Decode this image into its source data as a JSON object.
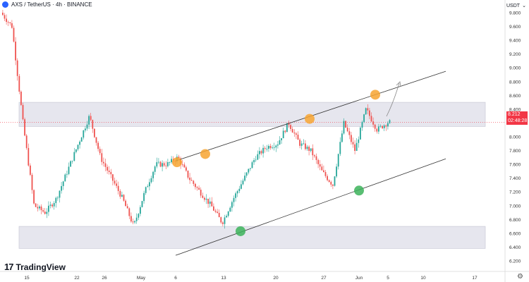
{
  "header": {
    "symbol": "AXS / TetherUS · 4h · BINANCE"
  },
  "brand": {
    "name": "TradingView",
    "mark": "17"
  },
  "price_axis": {
    "currency": "USDT",
    "current_price": "8.212",
    "countdown": "02:48:28",
    "ticks": [
      "9.800",
      "9.600",
      "9.400",
      "9.200",
      "9.000",
      "8.800",
      "8.600",
      "8.400",
      "8.200",
      "8.000",
      "7.800",
      "7.600",
      "7.400",
      "7.200",
      "7.000",
      "6.800",
      "6.600",
      "6.400",
      "6.200"
    ]
  },
  "colors": {
    "up": "#26a69a",
    "down": "#ef5350",
    "zone": "#e6e6ee",
    "orange_marker": "#f7a531",
    "green_marker": "#3cb35a",
    "price_tag": "#f23645"
  },
  "chart_data": {
    "type": "candlestick",
    "x_ticks": [
      "15",
      "22",
      "26",
      "May",
      "6",
      "13",
      "20",
      "27",
      "Jun",
      "5",
      "10",
      "17"
    ],
    "ylim": [
      6.2,
      9.9
    ],
    "last_price": 8.212,
    "price_path": [
      [
        "15",
        9.8
      ],
      [
        "15",
        9.6
      ],
      [
        "15",
        8.2
      ],
      [
        "15",
        7.0
      ],
      [
        "15",
        6.9
      ],
      [
        "15",
        7.1
      ],
      [
        "22",
        7.5
      ],
      [
        "22",
        7.9
      ],
      [
        "26",
        8.3
      ],
      [
        "26",
        7.7
      ],
      [
        "26",
        7.4
      ],
      [
        "May",
        7.1
      ],
      [
        "May",
        6.7
      ],
      [
        "May",
        7.2
      ],
      [
        "May",
        7.6
      ],
      [
        "6",
        7.6
      ],
      [
        "6",
        7.7
      ],
      [
        "6",
        7.4
      ],
      [
        "6",
        7.2
      ],
      [
        "13",
        7.0
      ],
      [
        "13",
        6.75
      ],
      [
        "13",
        7.1
      ],
      [
        "13",
        7.4
      ],
      [
        "20",
        7.7
      ],
      [
        "20",
        7.85
      ],
      [
        "20",
        7.9
      ],
      [
        "27",
        8.2
      ],
      [
        "27",
        7.9
      ],
      [
        "27",
        7.8
      ],
      [
        "27",
        7.5
      ],
      [
        "27",
        7.3
      ],
      [
        "Jun",
        8.2
      ],
      [
        "Jun",
        7.8
      ],
      [
        "Jun",
        8.4
      ],
      [
        "Jun",
        8.1
      ],
      [
        "Jun",
        8.212
      ]
    ],
    "zones": [
      {
        "from": 8.15,
        "to": 8.5
      },
      {
        "from": 6.38,
        "to": 6.7
      }
    ],
    "channel": {
      "upper": [
        [
          "6",
          7.65
        ],
        [
          "17",
          8.95
        ]
      ],
      "lower": [
        [
          "6",
          6.28
        ],
        [
          "17",
          7.68
        ]
      ]
    },
    "resistance_touches": [
      [
        "6",
        7.63
      ],
      [
        "6",
        7.75
      ],
      [
        "20",
        8.26
      ],
      [
        "Jun",
        8.61
      ]
    ],
    "support_touches": [
      [
        "13",
        6.63
      ],
      [
        "27",
        7.22
      ]
    ]
  }
}
